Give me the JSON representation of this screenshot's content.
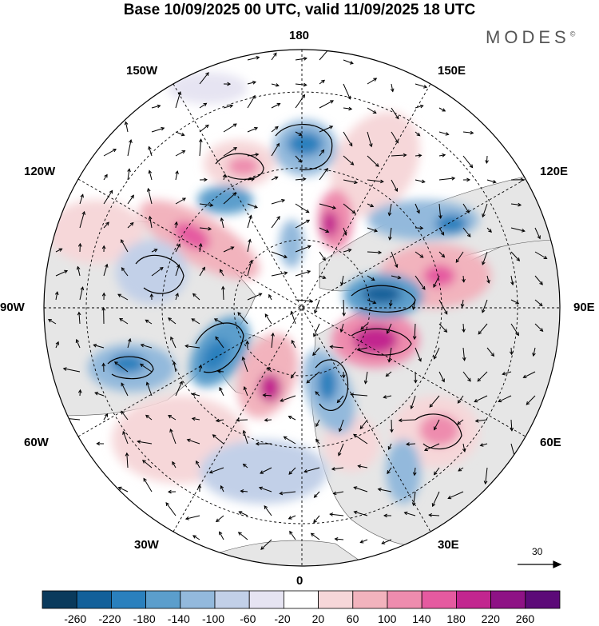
{
  "header": {
    "title": "Base 10/09/2025 00 UTC, valid 11/09/2025 18 UTC",
    "brand": "MODES",
    "brand_mark": "©"
  },
  "map": {
    "projection": "north polar stereographic",
    "longitude_labels": {
      "top": "180",
      "bottom": "0",
      "left": "90W",
      "right": "90E",
      "upper_left": "150W",
      "upper_right": "150E",
      "left_upper": "120W",
      "right_upper": "120E",
      "left_lower": "60W",
      "right_lower": "60E",
      "lower_left": "30W",
      "lower_right": "30E"
    },
    "reference_vector": {
      "label": "30"
    }
  },
  "colorbar": {
    "ticks": [
      "-260",
      "-220",
      "-180",
      "-140",
      "-100",
      "-60",
      "-20",
      "20",
      "60",
      "100",
      "140",
      "180",
      "220",
      "260"
    ],
    "colors": [
      "#0a3a5c",
      "#12609a",
      "#2a80bd",
      "#5b9ecc",
      "#93b9dc",
      "#c2d0e8",
      "#e6e4f2",
      "#ffffff",
      "#f6d7d9",
      "#f2b3bd",
      "#ee8cae",
      "#e55aa0",
      "#c2268f",
      "#8e1285",
      "#5c0a78"
    ]
  },
  "colors": {
    "land": "#e8e8e8",
    "ocean": "#ffffff",
    "grid": "#000000"
  }
}
